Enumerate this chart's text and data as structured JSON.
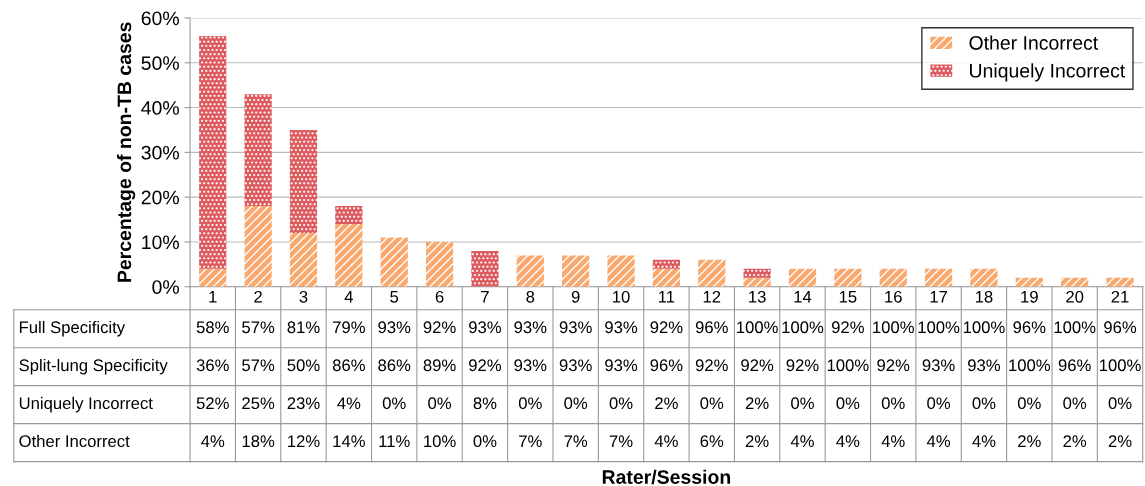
{
  "chart_data": {
    "type": "bar",
    "stacked": true,
    "ylabel": "Percentage of non-TB cases",
    "categories": [
      "1",
      "2",
      "3",
      "4",
      "5",
      "6",
      "7",
      "8",
      "9",
      "10",
      "11",
      "12",
      "13",
      "14",
      "15",
      "16",
      "17",
      "18",
      "19",
      "20",
      "21"
    ],
    "series": [
      {
        "name": "Other Incorrect",
        "color": "#f9a86e",
        "values": [
          4,
          18,
          12,
          14,
          11,
          10,
          0,
          7,
          7,
          7,
          4,
          6,
          2,
          4,
          4,
          4,
          4,
          4,
          2,
          2,
          2
        ],
        "value_labels": [
          "4%",
          "18%",
          "12%",
          "14%",
          "11%",
          "10%",
          "0%",
          "7%",
          "7%",
          "7%",
          "4%",
          "6%",
          "2%",
          "4%",
          "4%",
          "4%",
          "4%",
          "4%",
          "2%",
          "2%",
          "2%"
        ]
      },
      {
        "name": "Uniquely Incorrect",
        "color": "#dd5a5e",
        "values": [
          52,
          25,
          23,
          4,
          0,
          0,
          8,
          0,
          0,
          0,
          2,
          0,
          2,
          0,
          0,
          0,
          0,
          0,
          0,
          0,
          0
        ],
        "value_labels": [
          "52%",
          "25%",
          "23%",
          "4%",
          "0%",
          "0%",
          "8%",
          "0%",
          "0%",
          "0%",
          "2%",
          "0%",
          "2%",
          "0%",
          "0%",
          "0%",
          "0%",
          "0%",
          "0%",
          "0%",
          "0%"
        ]
      }
    ],
    "annotations": [
      "Full Specificity",
      "58%",
      "57%",
      "81%",
      "79%",
      "93%",
      "92%",
      "93%",
      "93%",
      "93%",
      "93%",
      "92%",
      "96%",
      "100%",
      "100%",
      "92%",
      "100%",
      "100%",
      "100%",
      "96%",
      "100%",
      "96%",
      "Split-lung Specificity",
      "36%",
      "57%",
      "50%",
      "86%",
      "86%",
      "89%",
      "92%",
      "93%",
      "93%",
      "93%",
      "96%",
      "92%",
      "92%",
      "92%",
      "100%",
      "92%",
      "93%",
      "93%",
      "100%",
      "96%",
      "100%",
      "Rater/Session"
    ],
    "ylim": [
      0,
      60
    ],
    "yticks": [
      {
        "value": 0,
        "label": "0%"
      },
      {
        "value": 10,
        "label": "10%"
      },
      {
        "value": 20,
        "label": "20%"
      },
      {
        "value": 30,
        "label": "30%"
      },
      {
        "value": 40,
        "label": "40%"
      },
      {
        "value": 50,
        "label": "50%"
      },
      {
        "value": 60,
        "label": "60%"
      }
    ],
    "grid": "y",
    "legend": "top right"
  }
}
